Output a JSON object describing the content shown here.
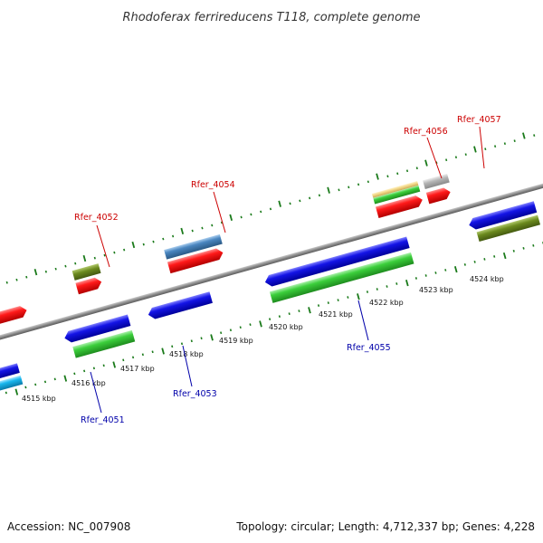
{
  "title": "Rhodoferax ferrireducens T118, complete genome",
  "footer": {
    "accession": "Accession: NC_007908",
    "summary": "Topology: circular; Length: 4,712,337 bp; Genes: 4,228"
  },
  "ruler_labels": [
    "4515 kbp",
    "4516 kbp",
    "4517 kbp",
    "4518 kbp",
    "4519 kbp",
    "4520 kbp",
    "4521 kbp",
    "4522 kbp",
    "4523 kbp",
    "4524 kbp"
  ],
  "gene_labels": {
    "rfer_4051": "Rfer_4051",
    "rfer_4052": "Rfer_4052",
    "rfer_4053": "Rfer_4053",
    "rfer_4054": "Rfer_4054",
    "rfer_4055": "Rfer_4055",
    "rfer_4056": "Rfer_4056",
    "rfer_4057": "Rfer_4057"
  },
  "colors": {
    "backbone": "#8c8c8c",
    "ticks": "#1a7a1a",
    "forward_label": "#cc0000",
    "reverse_label": "#0000aa",
    "gene_blue": "#1414e6",
    "gene_green": "#3ccf3c",
    "gene_red": "#ee1111",
    "gene_steelblue": "#4a86c0",
    "gene_olive": "#6b8a1e",
    "gene_tan": "#f3d98a",
    "gene_gray": "#b5b5b5",
    "gene_cyan": "#19b7ee"
  }
}
